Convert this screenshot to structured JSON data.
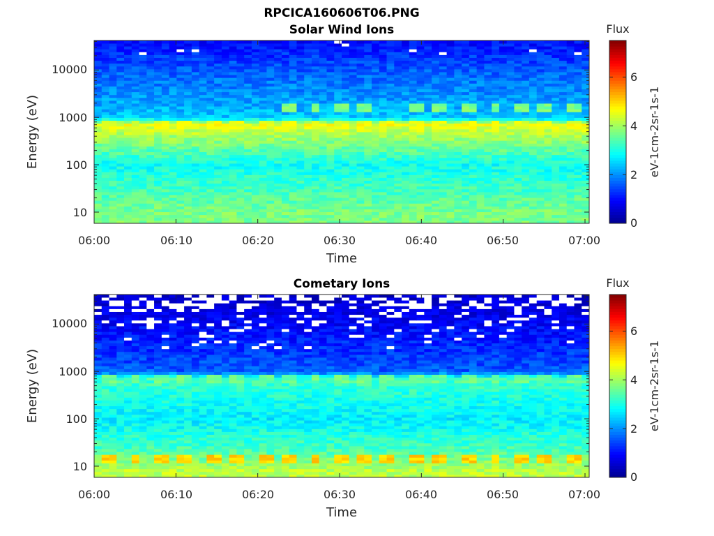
{
  "figure_title": "RPCICA160606T06.PNG",
  "colormap": [
    "#00008f",
    "#0000ff",
    "#0080ff",
    "#00ffff",
    "#80ff80",
    "#ffff00",
    "#ff8000",
    "#ff0000",
    "#800000"
  ],
  "chart_data": [
    {
      "type": "heatmap",
      "title": "Solar Wind Ions",
      "xlabel": "Time",
      "ylabel": "Energy (eV)",
      "x_ticks": [
        "06:00",
        "06:10",
        "06:20",
        "06:30",
        "06:40",
        "06:50",
        "07:00"
      ],
      "y_scale": "log",
      "y_ticks": [
        "10",
        "100",
        "1000",
        "10000"
      ],
      "colorbar_title": "Flux",
      "colorbar_label": "eV-1cm-2sr-1s-1",
      "colorbar_ticks": [
        "0",
        "2",
        "4",
        "6"
      ],
      "clim": [
        0,
        7.5
      ],
      "grid": false,
      "profile_energy_eV": [
        10,
        100,
        700,
        1000,
        10000,
        40000
      ],
      "profile_flux": [
        3.7,
        2.9,
        4.5,
        2.4,
        1.6,
        1.0
      ],
      "bursts": [
        {
          "energy_eV": 700,
          "flux": 4.5,
          "times_min": [
            2,
            5,
            8,
            11,
            14.5,
            17.5,
            21,
            24,
            27,
            30,
            33,
            36,
            39.5,
            42.5,
            45.5,
            49,
            52,
            55,
            58.5
          ]
        },
        {
          "energy_eV": 1600,
          "flux": 3.7,
          "times_min": [
            24,
            27,
            30,
            33,
            39.5,
            42.5,
            45.5,
            49,
            52,
            55,
            58.5
          ]
        }
      ]
    },
    {
      "type": "heatmap",
      "title": "Cometary Ions",
      "xlabel": "Time",
      "ylabel": "Energy (eV)",
      "x_ticks": [
        "06:00",
        "06:10",
        "06:20",
        "06:30",
        "06:40",
        "06:50",
        "07:00"
      ],
      "y_scale": "log",
      "y_ticks": [
        "10",
        "100",
        "1000",
        "10000"
      ],
      "colorbar_title": "Flux",
      "colorbar_label": "eV-1cm-2sr-1s-1",
      "colorbar_ticks": [
        "0",
        "2",
        "4",
        "6"
      ],
      "clim": [
        0,
        7.5
      ],
      "grid": false,
      "profile_energy_eV": [
        8,
        20,
        100,
        700,
        1000,
        10000,
        40000
      ],
      "profile_flux": [
        4.2,
        3.4,
        2.7,
        3.3,
        1.6,
        0.9,
        0.5
      ],
      "bursts": [
        {
          "energy_eV": 15,
          "flux": 5.0,
          "times_min": [
            2,
            5,
            8,
            11,
            14.5,
            17.5,
            21,
            24,
            27,
            30,
            33,
            36,
            39.5,
            42.5,
            45.5,
            49,
            52,
            55,
            58.5
          ]
        },
        {
          "energy_eV": 700,
          "flux": 3.6,
          "times_min": [
            2,
            5,
            8,
            11,
            14.5,
            17.5,
            21,
            24,
            27,
            30,
            33,
            36,
            39.5,
            42.5,
            45.5,
            49,
            52,
            55,
            58.5
          ]
        }
      ]
    }
  ]
}
